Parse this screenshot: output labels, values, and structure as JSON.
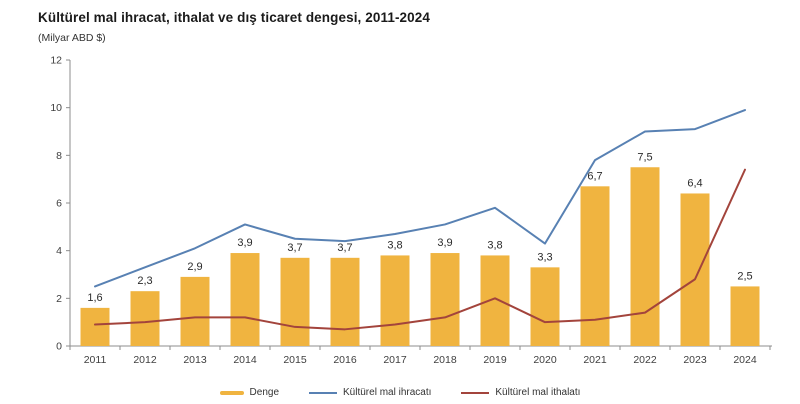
{
  "chart_data": {
    "type": "combo-bar-line",
    "title": "Kültürel mal ihracat, ithalat ve dış ticaret dengesi, 2011-2024",
    "unit_label": "(Milyar ABD $)",
    "categories": [
      "2011",
      "2012",
      "2013",
      "2014",
      "2015",
      "2016",
      "2017",
      "2018",
      "2019",
      "2020",
      "2021",
      "2022",
      "2023",
      "2024"
    ],
    "ylim": [
      0,
      12
    ],
    "yticks": [
      0,
      2,
      4,
      6,
      8,
      10,
      12
    ],
    "grid": false,
    "legend_position": "bottom",
    "bar_series": {
      "name": "Denge",
      "color": "#F0B440",
      "values": [
        1.6,
        2.3,
        2.9,
        3.9,
        3.7,
        3.7,
        3.8,
        3.9,
        3.8,
        3.3,
        6.7,
        7.5,
        6.4,
        2.5
      ],
      "labels": [
        "1,6",
        "2,3",
        "2,9",
        "3,9",
        "3,7",
        "3,7",
        "3,8",
        "3,9",
        "3,8",
        "3,3",
        "6,7",
        "7,5",
        "6,4",
        "2,5"
      ]
    },
    "line_series": [
      {
        "name": "Kültürel mal ihracatı",
        "color": "#5881B3",
        "values": [
          2.5,
          3.3,
          4.1,
          5.1,
          4.5,
          4.4,
          4.7,
          5.1,
          5.8,
          4.3,
          7.8,
          9.0,
          9.1,
          9.9
        ]
      },
      {
        "name": "Kültürel mal ithalatı",
        "color": "#A3443C",
        "values": [
          0.9,
          1.0,
          1.2,
          1.2,
          0.8,
          0.7,
          0.9,
          1.2,
          2.0,
          1.0,
          1.1,
          1.4,
          2.8,
          7.4
        ]
      }
    ],
    "axis_color": "#8c8c8c",
    "tick_label_color": "#404040",
    "value_label_color": "#2b2b2b"
  }
}
